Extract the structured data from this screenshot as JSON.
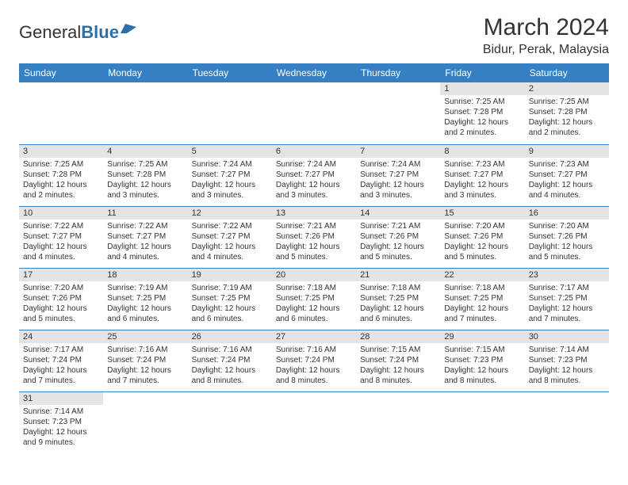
{
  "logo": {
    "general": "General",
    "blue": "Blue"
  },
  "header": {
    "title": "March 2024",
    "location": "Bidur, Perak, Malaysia"
  },
  "colors": {
    "headerBar": "#3580c2",
    "dayNumBg": "#e4e4e4",
    "text": "#333333",
    "rowBorder": "#3580c2",
    "logoBlue": "#2f6fa8"
  },
  "weekdays": [
    "Sunday",
    "Monday",
    "Tuesday",
    "Wednesday",
    "Thursday",
    "Friday",
    "Saturday"
  ],
  "weeks": [
    [
      {
        "num": "",
        "lines": []
      },
      {
        "num": "",
        "lines": []
      },
      {
        "num": "",
        "lines": []
      },
      {
        "num": "",
        "lines": []
      },
      {
        "num": "",
        "lines": []
      },
      {
        "num": "1",
        "lines": [
          "Sunrise: 7:25 AM",
          "Sunset: 7:28 PM",
          "Daylight: 12 hours and 2 minutes."
        ]
      },
      {
        "num": "2",
        "lines": [
          "Sunrise: 7:25 AM",
          "Sunset: 7:28 PM",
          "Daylight: 12 hours and 2 minutes."
        ]
      }
    ],
    [
      {
        "num": "3",
        "lines": [
          "Sunrise: 7:25 AM",
          "Sunset: 7:28 PM",
          "Daylight: 12 hours and 2 minutes."
        ]
      },
      {
        "num": "4",
        "lines": [
          "Sunrise: 7:25 AM",
          "Sunset: 7:28 PM",
          "Daylight: 12 hours and 3 minutes."
        ]
      },
      {
        "num": "5",
        "lines": [
          "Sunrise: 7:24 AM",
          "Sunset: 7:27 PM",
          "Daylight: 12 hours and 3 minutes."
        ]
      },
      {
        "num": "6",
        "lines": [
          "Sunrise: 7:24 AM",
          "Sunset: 7:27 PM",
          "Daylight: 12 hours and 3 minutes."
        ]
      },
      {
        "num": "7",
        "lines": [
          "Sunrise: 7:24 AM",
          "Sunset: 7:27 PM",
          "Daylight: 12 hours and 3 minutes."
        ]
      },
      {
        "num": "8",
        "lines": [
          "Sunrise: 7:23 AM",
          "Sunset: 7:27 PM",
          "Daylight: 12 hours and 3 minutes."
        ]
      },
      {
        "num": "9",
        "lines": [
          "Sunrise: 7:23 AM",
          "Sunset: 7:27 PM",
          "Daylight: 12 hours and 4 minutes."
        ]
      }
    ],
    [
      {
        "num": "10",
        "lines": [
          "Sunrise: 7:22 AM",
          "Sunset: 7:27 PM",
          "Daylight: 12 hours and 4 minutes."
        ]
      },
      {
        "num": "11",
        "lines": [
          "Sunrise: 7:22 AM",
          "Sunset: 7:27 PM",
          "Daylight: 12 hours and 4 minutes."
        ]
      },
      {
        "num": "12",
        "lines": [
          "Sunrise: 7:22 AM",
          "Sunset: 7:27 PM",
          "Daylight: 12 hours and 4 minutes."
        ]
      },
      {
        "num": "13",
        "lines": [
          "Sunrise: 7:21 AM",
          "Sunset: 7:26 PM",
          "Daylight: 12 hours and 5 minutes."
        ]
      },
      {
        "num": "14",
        "lines": [
          "Sunrise: 7:21 AM",
          "Sunset: 7:26 PM",
          "Daylight: 12 hours and 5 minutes."
        ]
      },
      {
        "num": "15",
        "lines": [
          "Sunrise: 7:20 AM",
          "Sunset: 7:26 PM",
          "Daylight: 12 hours and 5 minutes."
        ]
      },
      {
        "num": "16",
        "lines": [
          "Sunrise: 7:20 AM",
          "Sunset: 7:26 PM",
          "Daylight: 12 hours and 5 minutes."
        ]
      }
    ],
    [
      {
        "num": "17",
        "lines": [
          "Sunrise: 7:20 AM",
          "Sunset: 7:26 PM",
          "Daylight: 12 hours and 5 minutes."
        ]
      },
      {
        "num": "18",
        "lines": [
          "Sunrise: 7:19 AM",
          "Sunset: 7:25 PM",
          "Daylight: 12 hours and 6 minutes."
        ]
      },
      {
        "num": "19",
        "lines": [
          "Sunrise: 7:19 AM",
          "Sunset: 7:25 PM",
          "Daylight: 12 hours and 6 minutes."
        ]
      },
      {
        "num": "20",
        "lines": [
          "Sunrise: 7:18 AM",
          "Sunset: 7:25 PM",
          "Daylight: 12 hours and 6 minutes."
        ]
      },
      {
        "num": "21",
        "lines": [
          "Sunrise: 7:18 AM",
          "Sunset: 7:25 PM",
          "Daylight: 12 hours and 6 minutes."
        ]
      },
      {
        "num": "22",
        "lines": [
          "Sunrise: 7:18 AM",
          "Sunset: 7:25 PM",
          "Daylight: 12 hours and 7 minutes."
        ]
      },
      {
        "num": "23",
        "lines": [
          "Sunrise: 7:17 AM",
          "Sunset: 7:25 PM",
          "Daylight: 12 hours and 7 minutes."
        ]
      }
    ],
    [
      {
        "num": "24",
        "lines": [
          "Sunrise: 7:17 AM",
          "Sunset: 7:24 PM",
          "Daylight: 12 hours and 7 minutes."
        ]
      },
      {
        "num": "25",
        "lines": [
          "Sunrise: 7:16 AM",
          "Sunset: 7:24 PM",
          "Daylight: 12 hours and 7 minutes."
        ]
      },
      {
        "num": "26",
        "lines": [
          "Sunrise: 7:16 AM",
          "Sunset: 7:24 PM",
          "Daylight: 12 hours and 8 minutes."
        ]
      },
      {
        "num": "27",
        "lines": [
          "Sunrise: 7:16 AM",
          "Sunset: 7:24 PM",
          "Daylight: 12 hours and 8 minutes."
        ]
      },
      {
        "num": "28",
        "lines": [
          "Sunrise: 7:15 AM",
          "Sunset: 7:24 PM",
          "Daylight: 12 hours and 8 minutes."
        ]
      },
      {
        "num": "29",
        "lines": [
          "Sunrise: 7:15 AM",
          "Sunset: 7:23 PM",
          "Daylight: 12 hours and 8 minutes."
        ]
      },
      {
        "num": "30",
        "lines": [
          "Sunrise: 7:14 AM",
          "Sunset: 7:23 PM",
          "Daylight: 12 hours and 8 minutes."
        ]
      }
    ],
    [
      {
        "num": "31",
        "lines": [
          "Sunrise: 7:14 AM",
          "Sunset: 7:23 PM",
          "Daylight: 12 hours and 9 minutes."
        ]
      },
      {
        "num": "",
        "lines": []
      },
      {
        "num": "",
        "lines": []
      },
      {
        "num": "",
        "lines": []
      },
      {
        "num": "",
        "lines": []
      },
      {
        "num": "",
        "lines": []
      },
      {
        "num": "",
        "lines": []
      }
    ]
  ]
}
